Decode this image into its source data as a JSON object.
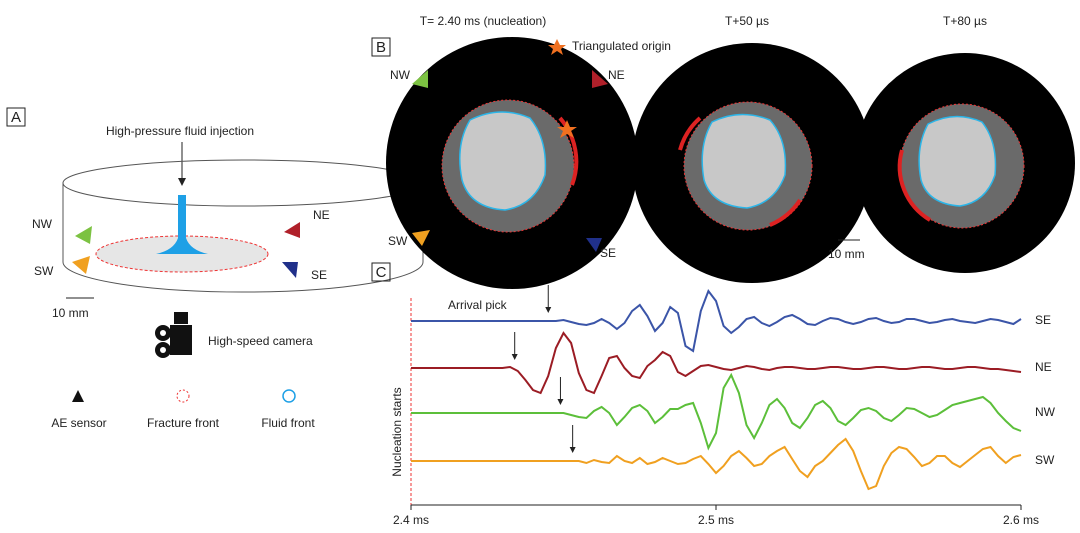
{
  "panels": {
    "a": "A",
    "b": "B",
    "c": "C"
  },
  "panel_a": {
    "title": "High-pressure fluid injection",
    "sensors": [
      "NW",
      "NE",
      "SW",
      "SE"
    ],
    "scale": "10 mm",
    "camera": "High-speed camera",
    "legend": [
      "AE sensor",
      "Fracture front",
      "Fluid front"
    ]
  },
  "panel_b": {
    "frames": [
      "T= 2.40 ms (nucleation)",
      "T+50 µs",
      "T+80 µs"
    ],
    "origin": "Triangulated origin",
    "sensors": [
      "NW",
      "NE",
      "SW",
      "SE"
    ],
    "scale": "10 mm"
  },
  "chart_data": {
    "type": "line",
    "x": [
      2.4,
      2.4025,
      2.405,
      2.4075,
      2.41,
      2.4125,
      2.415,
      2.4175,
      2.42,
      2.4225,
      2.425,
      2.4275,
      2.43,
      2.4325,
      2.435,
      2.4375,
      2.44,
      2.4425,
      2.445,
      2.4475,
      2.45,
      2.4525,
      2.455,
      2.4575,
      2.46,
      2.4625,
      2.465,
      2.4675,
      2.47,
      2.4725,
      2.475,
      2.4775,
      2.48,
      2.4825,
      2.485,
      2.4875,
      2.49,
      2.4925,
      2.495,
      2.4975,
      2.5,
      2.5025,
      2.505,
      2.5075,
      2.51,
      2.5125,
      2.515,
      2.5175,
      2.52,
      2.5225,
      2.525,
      2.5275,
      2.53,
      2.5325,
      2.535,
      2.5375,
      2.54,
      2.5425,
      2.545,
      2.5475,
      2.55,
      2.5525,
      2.555,
      2.5575,
      2.56,
      2.5625,
      2.565,
      2.5675,
      2.57,
      2.5725,
      2.575,
      2.5775,
      2.58,
      2.5825,
      2.585,
      2.5875,
      2.59,
      2.5925,
      2.595,
      2.5975,
      2.6
    ],
    "xlim": [
      2.4,
      2.6
    ],
    "xticks": [
      {
        "value": 2.4,
        "label": "2.4 ms"
      },
      {
        "value": 2.5,
        "label": "2.5 ms"
      },
      {
        "value": 2.6,
        "label": "2.6 ms"
      }
    ],
    "annotations": [
      "Arrival pick",
      "Nucleation starts"
    ],
    "series": [
      {
        "name": "SE",
        "color": "#3b55a8",
        "arrival_pick": 2.445,
        "values": [
          0,
          0,
          0,
          0,
          0,
          0,
          0,
          0,
          0,
          0,
          0,
          0,
          0,
          0,
          0,
          0,
          0,
          0,
          0,
          0,
          1,
          -1,
          -3,
          -4,
          -2,
          2,
          -2,
          -8,
          -2,
          10,
          16,
          5,
          -10,
          -2,
          14,
          8,
          -25,
          -30,
          10,
          30,
          20,
          -5,
          -12,
          -6,
          2,
          4,
          -2,
          -5,
          -1,
          4,
          6,
          2,
          -3,
          -4,
          0,
          3,
          2,
          -1,
          -3,
          -1,
          2,
          3,
          0,
          -2,
          -1,
          2,
          2,
          0,
          -2,
          -1,
          1,
          2,
          0,
          -1,
          -2,
          0,
          2,
          1,
          -1,
          -3,
          2
        ]
      },
      {
        "name": "NE",
        "color": "#9b1c24",
        "arrival_pick": 2.434,
        "values": [
          0,
          0,
          0,
          0,
          0,
          0,
          0,
          0,
          0,
          0,
          0,
          0,
          0,
          1,
          -3,
          -12,
          -22,
          -25,
          -8,
          20,
          35,
          25,
          -5,
          -22,
          -25,
          -8,
          10,
          12,
          0,
          -8,
          -10,
          2,
          8,
          16,
          12,
          -4,
          -8,
          -3,
          2,
          3,
          1,
          -1,
          -2,
          0,
          2,
          1,
          -1,
          -2,
          0,
          1,
          1,
          0,
          -1,
          -1,
          0,
          1,
          1,
          0,
          -1,
          -1,
          0,
          1,
          1,
          0,
          -1,
          -1,
          0,
          1,
          1,
          0,
          -1,
          -1,
          0,
          1,
          1,
          0,
          -1,
          -1,
          -2,
          -3,
          -4
        ]
      },
      {
        "name": "NW",
        "color": "#5cbf3a",
        "arrival_pick": 2.449,
        "values": [
          0,
          0,
          0,
          0,
          0,
          0,
          0,
          0,
          0,
          0,
          0,
          0,
          0,
          0,
          0,
          0,
          0,
          0,
          0,
          0,
          0,
          -2,
          -4,
          -5,
          2,
          6,
          0,
          -12,
          -4,
          5,
          8,
          2,
          -10,
          -4,
          4,
          4,
          8,
          10,
          -10,
          -35,
          -20,
          25,
          38,
          20,
          -12,
          -25,
          -10,
          8,
          14,
          5,
          -10,
          -15,
          -5,
          8,
          12,
          5,
          -8,
          -12,
          -5,
          3,
          5,
          2,
          -5,
          -8,
          -2,
          5,
          4,
          0,
          -4,
          -2,
          3,
          8,
          10,
          12,
          14,
          16,
          10,
          0,
          -8,
          -15,
          -18
        ]
      },
      {
        "name": "SW",
        "color": "#f0a020",
        "arrival_pick": 2.453,
        "values": [
          0,
          0,
          0,
          0,
          0,
          0,
          0,
          0,
          0,
          0,
          0,
          0,
          0,
          0,
          0,
          0,
          0,
          0,
          0,
          0,
          0,
          0,
          0,
          -2,
          1,
          -1,
          -2,
          5,
          0,
          -2,
          3,
          -3,
          -1,
          3,
          0,
          -3,
          -2,
          2,
          5,
          -3,
          -12,
          -5,
          5,
          10,
          3,
          -5,
          -3,
          5,
          10,
          14,
          2,
          -10,
          -16,
          -5,
          0,
          8,
          16,
          22,
          10,
          -10,
          -28,
          -25,
          -5,
          8,
          14,
          12,
          4,
          -5,
          -2,
          5,
          5,
          -2,
          -6,
          0,
          6,
          12,
          14,
          5,
          -2,
          4,
          6
        ]
      }
    ]
  }
}
